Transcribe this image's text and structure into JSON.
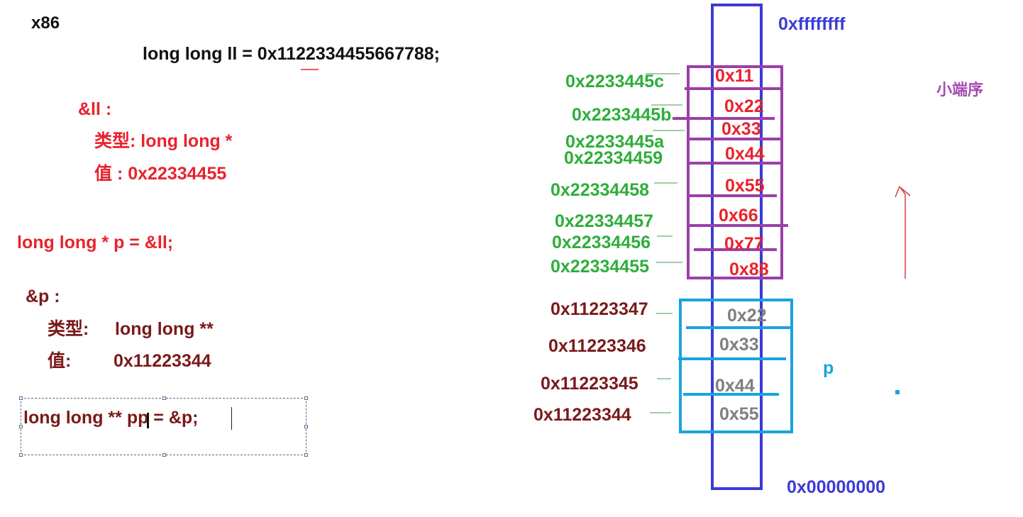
{
  "left": {
    "arch": "x86",
    "decl_ll": "long long ll = 0x1122334455667788;",
    "addr_ll_label": "&ll :",
    "addr_ll_type": "类型:  long long *",
    "addr_ll_value": "值   :  0x22334455",
    "decl_p": "long long * p = &ll;",
    "addr_p_label": "&p :",
    "addr_p_type_key": "类型:",
    "addr_p_type_val": "long long **",
    "addr_p_value_key": "值:",
    "addr_p_value_val": "0x11223344",
    "decl_pp": "long long ** pp = &p;"
  },
  "memory": {
    "top_address": "0xffffffff",
    "bottom_address": "0x00000000",
    "endianness_label": "小端序",
    "p_label": "p",
    "ll_block": {
      "addresses": [
        "0x2233445c",
        "0x2233445b",
        "0x2233445a",
        "0x22334459",
        "0x22334458",
        "0x22334457",
        "0x22334456",
        "0x22334455"
      ],
      "bytes": [
        "0x11",
        "0x22",
        "0x33",
        "0x44",
        "0x55",
        "0x66",
        "0x77",
        "0x88"
      ]
    },
    "p_block": {
      "addresses": [
        "0x11223347",
        "0x11223346",
        "0x11223345",
        "0x11223344"
      ],
      "bytes": [
        "0x22",
        "0x33",
        "0x44",
        "0x55"
      ]
    }
  },
  "colors": {
    "memory_column": "#3b3bd6",
    "ll_block_border": "#9b3fa8",
    "p_block_border": "#1aa3e0",
    "code_red": "#e8232c",
    "code_dark": "#7a1a1a",
    "address_green": "#2eae3a"
  }
}
